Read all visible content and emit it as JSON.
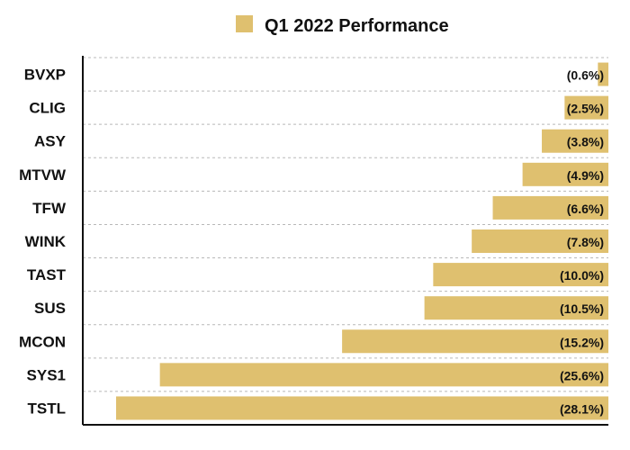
{
  "chart_data": {
    "type": "bar",
    "orientation": "horizontal",
    "categories": [
      "BVXP",
      "CLIG",
      "ASY",
      "MTVW",
      "TFW",
      "WINK",
      "TAST",
      "SUS",
      "MCON",
      "SYS1",
      "TSTL"
    ],
    "series": [
      {
        "name": "Q1 2022 Performance",
        "values": [
          -0.6,
          -2.5,
          -3.8,
          -4.9,
          -6.6,
          -7.8,
          -10.0,
          -10.5,
          -15.2,
          -25.6,
          -28.1
        ],
        "value_labels": [
          "(0.6%)",
          "(2.5%)",
          "(3.8%)",
          "(4.9%)",
          "(6.6%)",
          "(7.8%)",
          "(10.0%)",
          "(10.5%)",
          "(15.2%)",
          "(25.6%)",
          "(28.1%)"
        ]
      }
    ],
    "xlim": [
      -30,
      0
    ],
    "grid": true,
    "legend_position": "top-center",
    "bar_color": "#dfc06f",
    "grid_color": "#b8b8b8",
    "axis_color": "#111111"
  }
}
